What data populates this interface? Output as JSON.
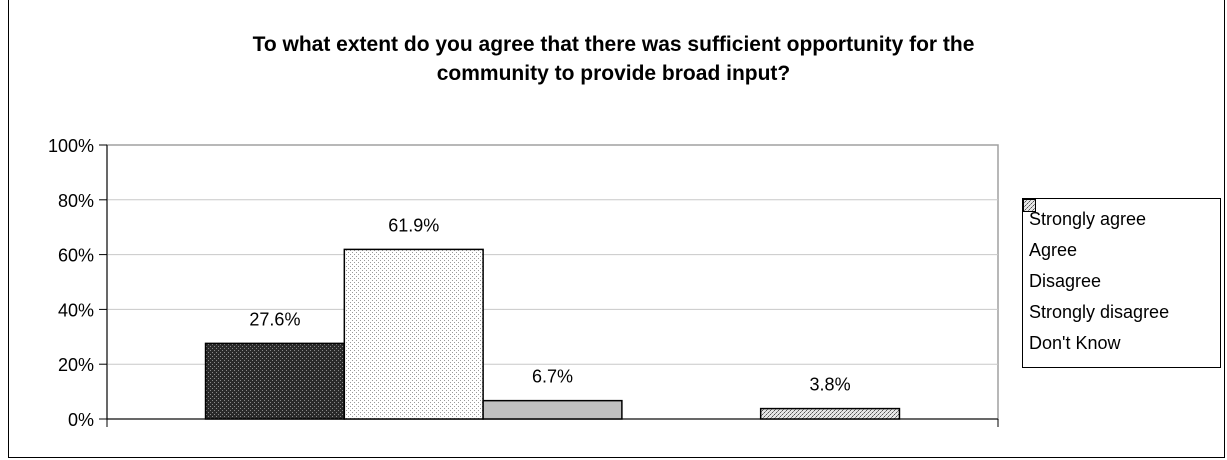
{
  "chart_data": {
    "type": "bar",
    "title_lines": [
      "To what extent do you agree that there was sufficient opportunity for the",
      "community to provide broad input?"
    ],
    "series": [
      {
        "name": "Strongly agree",
        "value": 27.6,
        "label": "27.6%",
        "pattern": "pat-strong-agree"
      },
      {
        "name": "Agree",
        "value": 61.9,
        "label": "61.9%",
        "pattern": "pat-agree"
      },
      {
        "name": "Disagree",
        "value": 6.7,
        "label": "6.7%",
        "pattern": "pat-disagree"
      },
      {
        "name": "Strongly disagree",
        "value": 0,
        "label": "",
        "pattern": "pat-strong-disagree"
      },
      {
        "name": "Don't Know",
        "value": 3.8,
        "label": "3.8%",
        "pattern": "pat-dont-know"
      }
    ],
    "yticks": [
      "0%",
      "20%",
      "40%",
      "60%",
      "80%",
      "100%"
    ],
    "ylim": [
      0,
      100
    ],
    "grid": true,
    "legend_position": "right"
  }
}
